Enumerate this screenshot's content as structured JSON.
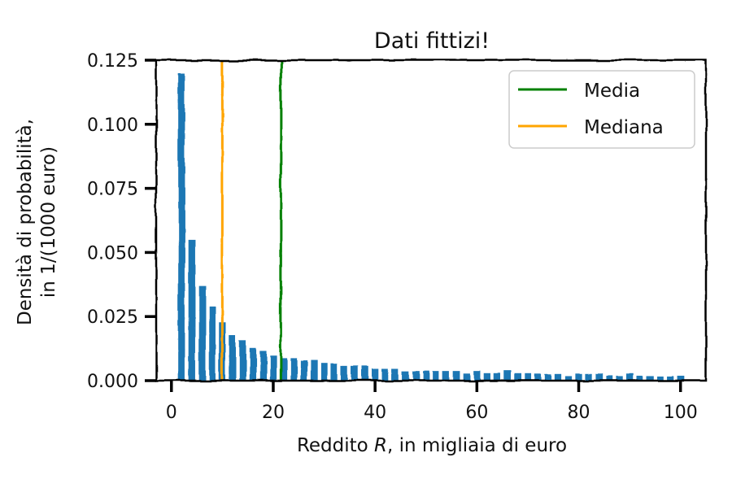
{
  "chart_data": {
    "type": "bar",
    "title": "Dati fittizi!",
    "xlabel_prefix": "Reddito ",
    "xlabel_var": "R",
    "xlabel_suffix": ", in migliaia di euro",
    "ylabel_line1": "Densità di probabilità,",
    "ylabel_line2": "in 1/(1000 euro)",
    "xlim": [
      -3,
      105
    ],
    "ylim": [
      0,
      0.125
    ],
    "xticks": [
      0,
      20,
      40,
      60,
      80,
      100
    ],
    "xtick_labels": [
      "0",
      "20",
      "40",
      "60",
      "80",
      "100"
    ],
    "yticks": [
      0,
      0.025,
      0.05,
      0.075,
      0.1,
      0.125
    ],
    "ytick_labels": [
      "0.000",
      "0.025",
      "0.050",
      "0.075",
      "0.100",
      "0.125"
    ],
    "bar_width": 2,
    "bars_x": [
      2,
      4,
      6,
      8,
      10,
      12,
      14,
      16,
      18,
      20,
      22,
      24,
      26,
      28,
      30,
      32,
      34,
      36,
      38,
      40,
      42,
      44,
      46,
      48,
      50,
      52,
      54,
      56,
      58,
      60,
      62,
      64,
      66,
      68,
      70,
      72,
      74,
      76,
      78,
      80,
      82,
      84,
      86,
      88,
      90,
      92,
      94,
      96,
      98,
      100
    ],
    "bars_y": [
      0.12,
      0.055,
      0.037,
      0.029,
      0.023,
      0.018,
      0.016,
      0.013,
      0.012,
      0.01,
      0.009,
      0.009,
      0.008,
      0.008,
      0.007,
      0.007,
      0.006,
      0.006,
      0.006,
      0.005,
      0.005,
      0.005,
      0.004,
      0.004,
      0.004,
      0.004,
      0.004,
      0.004,
      0.003,
      0.004,
      0.003,
      0.003,
      0.004,
      0.003,
      0.003,
      0.003,
      0.003,
      0.003,
      0.002,
      0.003,
      0.003,
      0.003,
      0.002,
      0.002,
      0.003,
      0.002,
      0.002,
      0.002,
      0.002,
      0.002
    ],
    "bar_color": "#1f77b4",
    "series": [
      {
        "name": "Media",
        "x": 21.5,
        "color": "#008000"
      },
      {
        "name": "Mediana",
        "x": 10,
        "color": "#ffa500"
      }
    ],
    "legend_position": "top-right",
    "grid": false
  }
}
